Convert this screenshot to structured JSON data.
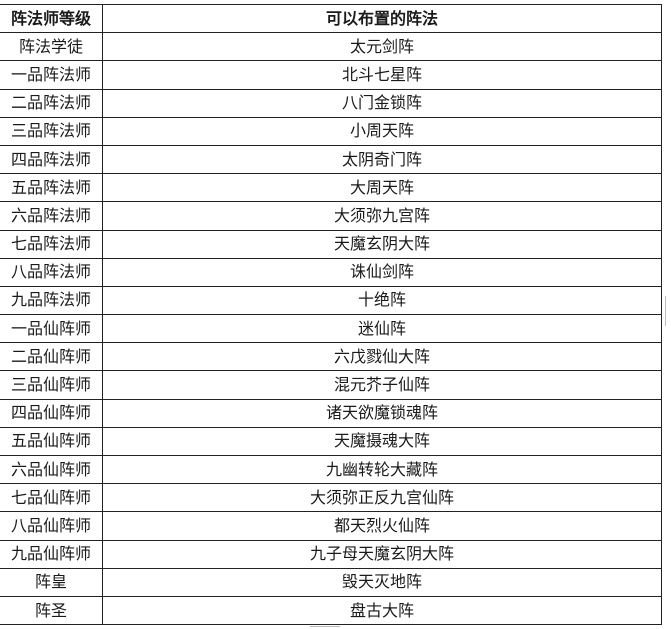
{
  "table": {
    "headers": [
      "阵法师等级",
      "可以布置的阵法"
    ],
    "rows": [
      [
        "阵法学徒",
        "太元剑阵"
      ],
      [
        "一品阵法师",
        "北斗七星阵"
      ],
      [
        "二品阵法师",
        "八门金锁阵"
      ],
      [
        "三品阵法师",
        "小周天阵"
      ],
      [
        "四品阵法师",
        "太阴奇门阵"
      ],
      [
        "五品阵法师",
        "大周天阵"
      ],
      [
        "六品阵法师",
        "大须弥九宫阵"
      ],
      [
        "七品阵法师",
        "天魔玄阴大阵"
      ],
      [
        "八品阵法师",
        "诛仙剑阵"
      ],
      [
        "九品阵法师",
        "十绝阵"
      ],
      [
        "一品仙阵师",
        "迷仙阵"
      ],
      [
        "二品仙阵师",
        "六戊戮仙大阵"
      ],
      [
        "三品仙阵师",
        "混元芥子仙阵"
      ],
      [
        "四品仙阵师",
        "诸天欲魔锁魂阵"
      ],
      [
        "五品仙阵师",
        "天魔摄魂大阵"
      ],
      [
        "六品仙阵师",
        "九幽转轮大藏阵"
      ],
      [
        "七品仙阵师",
        "大须弥正反九宫仙阵"
      ],
      [
        "八品仙阵师",
        "都天烈火仙阵"
      ],
      [
        "九品仙阵师",
        "九子母天魔玄阴大阵"
      ],
      [
        "阵皇",
        "毁天灭地阵"
      ],
      [
        "阵圣",
        "盘古大阵"
      ]
    ]
  }
}
